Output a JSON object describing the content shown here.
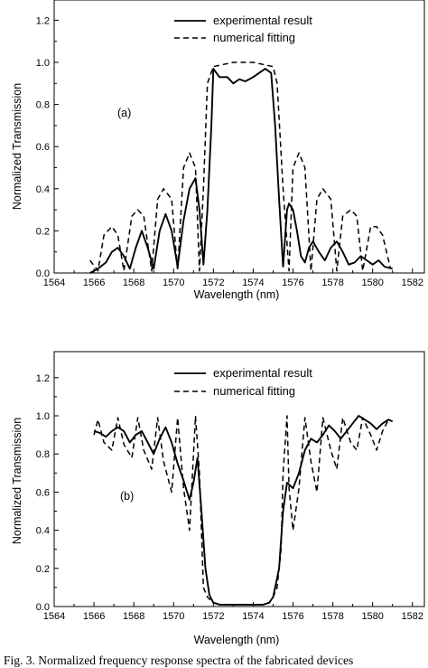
{
  "caption": "Fig. 3.   Normalized frequency response spectra of the fabricated devices",
  "chart_data": [
    {
      "type": "line",
      "panel_label": "(a)",
      "xlabel": "Wavelength (nm)",
      "ylabel": "Normalized Transmission",
      "xlim": [
        1564,
        1582.6
      ],
      "ylim": [
        0,
        1.3
      ],
      "xticks": [
        1564,
        1566,
        1568,
        1570,
        1572,
        1574,
        1576,
        1578,
        1580,
        1582
      ],
      "yticks": [
        0.0,
        0.2,
        0.4,
        0.6,
        0.8,
        1.0,
        1.2
      ],
      "grid": false,
      "legend": "top-right",
      "series": [
        {
          "name": "experimental result",
          "style": "solid",
          "x": [
            1565.8,
            1566.2,
            1566.6,
            1566.9,
            1567.2,
            1567.5,
            1567.8,
            1568.1,
            1568.4,
            1568.7,
            1569.0,
            1569.3,
            1569.6,
            1569.9,
            1570.2,
            1570.5,
            1570.8,
            1571.1,
            1571.3,
            1571.5,
            1571.7,
            1571.9,
            1572.0,
            1572.3,
            1572.7,
            1573.0,
            1573.3,
            1573.6,
            1574.0,
            1574.3,
            1574.6,
            1574.9,
            1575.1,
            1575.3,
            1575.5,
            1575.7,
            1575.8,
            1576.0,
            1576.2,
            1576.4,
            1576.6,
            1576.8,
            1577.0,
            1577.3,
            1577.6,
            1577.9,
            1578.2,
            1578.5,
            1578.8,
            1579.1,
            1579.4,
            1579.7,
            1580.0,
            1580.3,
            1580.6,
            1581.0
          ],
          "y": [
            0.0,
            0.02,
            0.05,
            0.1,
            0.12,
            0.08,
            0.02,
            0.12,
            0.2,
            0.12,
            0.02,
            0.2,
            0.28,
            0.2,
            0.03,
            0.25,
            0.4,
            0.45,
            0.3,
            0.04,
            0.3,
            0.7,
            0.97,
            0.93,
            0.93,
            0.9,
            0.92,
            0.91,
            0.93,
            0.95,
            0.97,
            0.95,
            0.7,
            0.35,
            0.03,
            0.3,
            0.33,
            0.3,
            0.2,
            0.08,
            0.05,
            0.12,
            0.15,
            0.1,
            0.06,
            0.12,
            0.15,
            0.1,
            0.04,
            0.05,
            0.08,
            0.06,
            0.04,
            0.06,
            0.03,
            0.02
          ]
        },
        {
          "name": "numerical fitting",
          "style": "dashed",
          "x": [
            1565.8,
            1566.2,
            1566.5,
            1566.9,
            1567.2,
            1567.5,
            1567.9,
            1568.2,
            1568.5,
            1568.9,
            1569.2,
            1569.5,
            1569.9,
            1570.2,
            1570.5,
            1570.8,
            1571.1,
            1571.3,
            1571.5,
            1571.7,
            1572.0,
            1572.5,
            1573.0,
            1573.5,
            1574.0,
            1574.5,
            1575.0,
            1575.2,
            1575.5,
            1575.8,
            1576.0,
            1576.3,
            1576.6,
            1576.9,
            1577.2,
            1577.5,
            1577.9,
            1578.2,
            1578.5,
            1578.9,
            1579.2,
            1579.5,
            1579.9,
            1580.2,
            1580.5,
            1580.9
          ],
          "y": [
            0.06,
            0.01,
            0.18,
            0.22,
            0.18,
            0.01,
            0.27,
            0.3,
            0.27,
            0.01,
            0.35,
            0.4,
            0.35,
            0.01,
            0.5,
            0.57,
            0.5,
            0.01,
            0.4,
            0.9,
            0.98,
            0.99,
            1.0,
            1.0,
            1.0,
            0.99,
            0.98,
            0.9,
            0.4,
            0.01,
            0.5,
            0.57,
            0.5,
            0.01,
            0.35,
            0.4,
            0.35,
            0.01,
            0.27,
            0.3,
            0.27,
            0.01,
            0.22,
            0.22,
            0.18,
            0.02
          ]
        }
      ]
    },
    {
      "type": "line",
      "panel_label": "(b)",
      "xlabel": "Wavelength (nm)",
      "ylabel": "Normalized Transmission",
      "xlim": [
        1564,
        1582.6
      ],
      "ylim": [
        0,
        1.3
      ],
      "xticks": [
        1564,
        1566,
        1568,
        1570,
        1572,
        1574,
        1576,
        1578,
        1580,
        1582
      ],
      "yticks": [
        0.0,
        0.2,
        0.4,
        0.6,
        0.8,
        1.0,
        1.2
      ],
      "grid": false,
      "legend": "top-right",
      "series": [
        {
          "name": "experimental result",
          "style": "solid",
          "x": [
            1566.0,
            1566.3,
            1566.6,
            1566.9,
            1567.2,
            1567.5,
            1567.8,
            1568.1,
            1568.4,
            1568.7,
            1569.0,
            1569.3,
            1569.6,
            1569.9,
            1570.2,
            1570.5,
            1570.8,
            1571.0,
            1571.2,
            1571.4,
            1571.6,
            1571.8,
            1572.0,
            1572.3,
            1572.6,
            1573.0,
            1573.5,
            1574.0,
            1574.5,
            1574.8,
            1575.0,
            1575.3,
            1575.5,
            1575.7,
            1576.0,
            1576.3,
            1576.6,
            1576.9,
            1577.2,
            1577.5,
            1577.8,
            1578.1,
            1578.4,
            1578.7,
            1579.0,
            1579.3,
            1579.6,
            1579.9,
            1580.2,
            1580.5,
            1580.8,
            1581.0
          ],
          "y": [
            0.92,
            0.91,
            0.89,
            0.92,
            0.94,
            0.92,
            0.86,
            0.9,
            0.92,
            0.86,
            0.8,
            0.88,
            0.94,
            0.86,
            0.75,
            0.66,
            0.56,
            0.65,
            0.78,
            0.5,
            0.2,
            0.06,
            0.02,
            0.01,
            0.01,
            0.01,
            0.01,
            0.01,
            0.01,
            0.02,
            0.05,
            0.2,
            0.5,
            0.65,
            0.62,
            0.7,
            0.82,
            0.88,
            0.86,
            0.9,
            0.95,
            0.92,
            0.88,
            0.92,
            0.96,
            1.0,
            0.98,
            0.96,
            0.93,
            0.96,
            0.98,
            0.97
          ]
        },
        {
          "name": "numerical fitting",
          "style": "dashed",
          "x": [
            1566.0,
            1566.2,
            1566.5,
            1566.9,
            1567.2,
            1567.5,
            1567.9,
            1568.2,
            1568.5,
            1568.9,
            1569.2,
            1569.5,
            1569.9,
            1570.2,
            1570.5,
            1570.8,
            1571.1,
            1571.3,
            1571.5,
            1571.7,
            1572.0,
            1572.5,
            1573.0,
            1573.5,
            1574.0,
            1574.5,
            1574.8,
            1575.0,
            1575.2,
            1575.4,
            1575.5,
            1575.7,
            1575.8,
            1576.0,
            1576.3,
            1576.6,
            1576.9,
            1577.2,
            1577.5,
            1577.9,
            1578.2,
            1578.5,
            1578.9,
            1579.2,
            1579.5,
            1579.9,
            1580.2,
            1580.5,
            1580.8
          ],
          "y": [
            0.9,
            0.98,
            0.86,
            0.82,
            0.99,
            0.85,
            0.78,
            0.99,
            0.82,
            0.72,
            0.99,
            0.76,
            0.6,
            0.99,
            0.62,
            0.4,
            1.0,
            0.7,
            0.1,
            0.05,
            0.02,
            0.01,
            0.01,
            0.01,
            0.01,
            0.01,
            0.02,
            0.05,
            0.1,
            0.3,
            0.7,
            1.0,
            0.62,
            0.4,
            0.62,
            0.99,
            0.76,
            0.6,
            0.99,
            0.82,
            0.72,
            0.99,
            0.86,
            0.82,
            0.99,
            0.9,
            0.82,
            0.92,
            0.98
          ]
        }
      ]
    }
  ]
}
